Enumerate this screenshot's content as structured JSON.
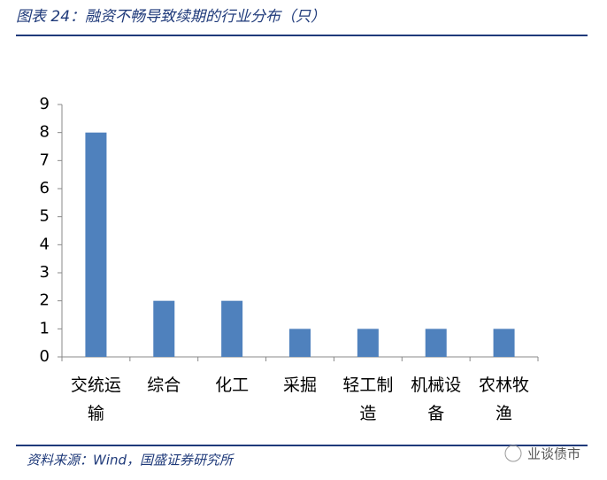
{
  "chart_data": {
    "type": "bar",
    "title": "图表 24：融资不畅导致续期的行业分布（只）",
    "categories": [
      "交统运输",
      "综合",
      "化工",
      "采掘",
      "轻工制造",
      "机械设备",
      "农林牧渔"
    ],
    "values": [
      8,
      2,
      2,
      1,
      1,
      1,
      1
    ],
    "color": "#4f81bd",
    "ylim": [
      0,
      9
    ],
    "yticks": [
      0,
      1,
      2,
      3,
      4,
      5,
      6,
      7,
      8,
      9
    ],
    "grid": false,
    "source": "资料来源：Wind，国盛证券研究所",
    "watermark": "业谈债市"
  }
}
